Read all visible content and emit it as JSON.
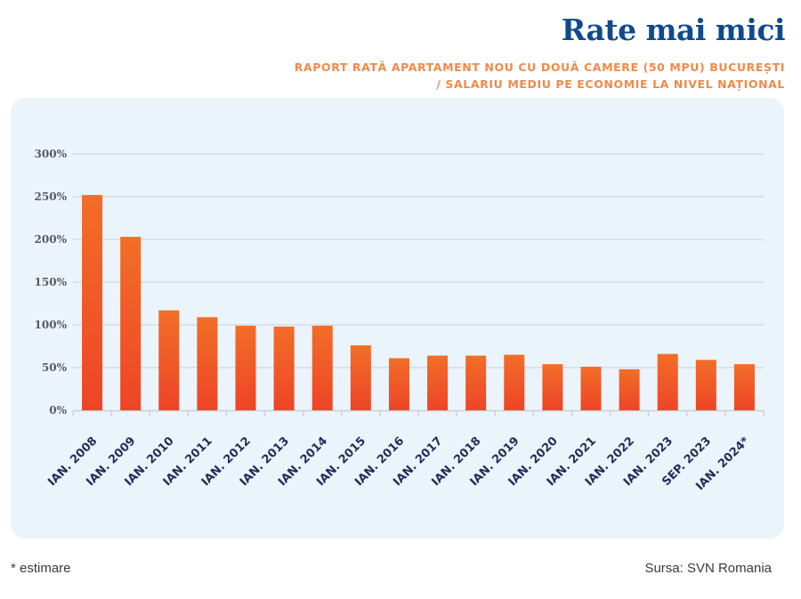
{
  "header": {
    "title": "Rate mai mici",
    "subtitle_line1": "RAPORT RATĂ APARTAMENT NOU CU DOUĂ CAMERE (50 MPU) BUCUREȘTI",
    "subtitle_line2": "/ SALARIU MEDIU PE ECONOMIE LA NIVEL NAȚIONAL"
  },
  "footer": {
    "note": "* estimare",
    "source": "Sursa: SVN Romania"
  },
  "colors": {
    "title": "#0f4a8c",
    "subtitle": "#ef8a4a",
    "bar_top": "#f26e27",
    "bar_bottom": "#ee4427",
    "panel": "#ebf3fb",
    "grid": "#d3dbe4",
    "xlabel": "#1f2d5a"
  },
  "chart_data": {
    "type": "bar",
    "title": "Rate mai mici",
    "subtitle": "Raport rată apartament nou cu două camere (50 mpu) București / salariu mediu pe economie la nivel național",
    "xlabel": "",
    "ylabel": "",
    "ylim": [
      0,
      300
    ],
    "yticks": [
      0,
      50,
      100,
      150,
      200,
      250,
      300
    ],
    "ytick_labels": [
      "0%",
      "50%",
      "100%",
      "150%",
      "200%",
      "250%",
      "300%"
    ],
    "grid": true,
    "legend": "none",
    "categories": [
      "IAN. 2008",
      "IAN. 2009",
      "IAN. 2010",
      "IAN. 2011",
      "IAN. 2012",
      "IAN. 2013",
      "IAN. 2014",
      "IAN. 2015",
      "IAN. 2016",
      "IAN. 2017",
      "IAN. 2018",
      "IAN. 2019",
      "IAN. 2020",
      "IAN. 2021",
      "IAN. 2022",
      "IAN. 2023",
      "SEP. 2023",
      "IAN. 2024*"
    ],
    "values": [
      252,
      203,
      117,
      109,
      99,
      98,
      99,
      76,
      61,
      64,
      64,
      65,
      54,
      51,
      48,
      66,
      59,
      54
    ],
    "unit": "%"
  }
}
